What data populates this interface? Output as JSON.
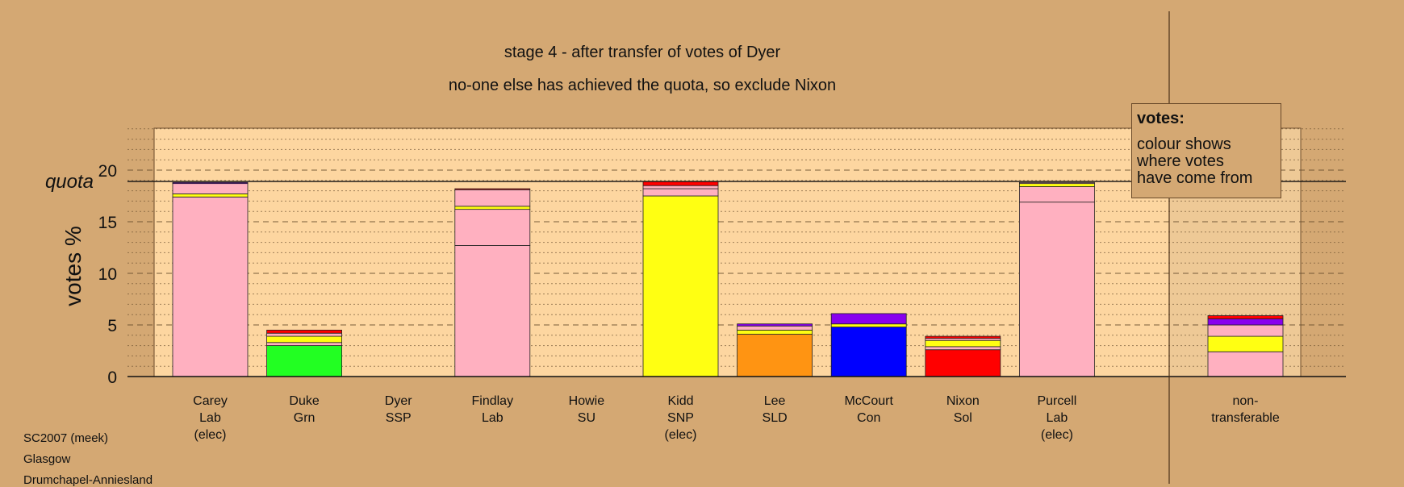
{
  "title": "stage 4 - after transfer of votes of Dyer",
  "subtitle": "no-one else has achieved the quota, so exclude Nixon",
  "legend": {
    "title": "votes:",
    "body": "colour shows\nwhere votes\nhave come from"
  },
  "footer": [
    "SC2007 (meek)",
    "Glasgow",
    "Drumchapel-Anniesland"
  ],
  "colors": {
    "background": "#d4a873",
    "plot_area": "#fdd6a0",
    "Lab": "#ffb0c0",
    "SNP": "#ffff12",
    "SLD": "#ff9412",
    "Con": "#0000ff",
    "Grn": "#22ff22",
    "Sol": "#ff0000",
    "SSP": "#ff3030",
    "SU": "#8800ee"
  },
  "chart_data": {
    "type": "bar",
    "stacked": true,
    "ylabel": "votes %",
    "ylim": [
      0,
      24
    ],
    "yticks": [
      0,
      5,
      10,
      15,
      20
    ],
    "quota": {
      "label": "quota",
      "value": 18.9
    },
    "grid": "dashed at ticks, dotted minor",
    "categories": [
      {
        "lines": [
          "Carey",
          "Lab",
          "(elec)"
        ],
        "segments": [
          {
            "party": "Lab",
            "value": 17.4
          },
          {
            "party": "SNP",
            "value": 0.3
          },
          {
            "party": "Lab",
            "value": 1.0
          },
          {
            "party": "SU",
            "value": 0.1
          }
        ]
      },
      {
        "lines": [
          "Duke",
          "Grn"
        ],
        "segments": [
          {
            "party": "Grn",
            "value": 3.0
          },
          {
            "party": "Lab",
            "value": 0.3
          },
          {
            "party": "SNP",
            "value": 0.6
          },
          {
            "party": "Lab",
            "value": 0.3
          },
          {
            "party": "Sol",
            "value": 0.3
          }
        ]
      },
      {
        "lines": [
          "Dyer",
          "SSP"
        ],
        "segments": []
      },
      {
        "lines": [
          "Findlay",
          "Lab"
        ],
        "segments": [
          {
            "party": "Lab",
            "value": 12.7
          },
          {
            "party": "Lab",
            "value": 3.5
          },
          {
            "party": "SNP",
            "value": 0.3
          },
          {
            "party": "Lab",
            "value": 1.6
          },
          {
            "party": "Sol",
            "value": 0.1
          }
        ]
      },
      {
        "lines": [
          "Howie",
          "SU"
        ],
        "segments": []
      },
      {
        "lines": [
          "Kidd",
          "SNP",
          "(elec)"
        ],
        "segments": [
          {
            "party": "SNP",
            "value": 17.5
          },
          {
            "party": "Lab",
            "value": 0.7
          },
          {
            "party": "Lab",
            "value": 0.3
          },
          {
            "party": "Sol",
            "value": 0.4
          }
        ]
      },
      {
        "lines": [
          "Lee",
          "SLD"
        ],
        "segments": [
          {
            "party": "SLD",
            "value": 4.1
          },
          {
            "party": "SNP",
            "value": 0.4
          },
          {
            "party": "Lab",
            "value": 0.4
          },
          {
            "party": "SU",
            "value": 0.2
          }
        ]
      },
      {
        "lines": [
          "McCourt",
          "Con"
        ],
        "segments": [
          {
            "party": "Con",
            "value": 4.8
          },
          {
            "party": "SNP",
            "value": 0.3
          },
          {
            "party": "SU",
            "value": 1.0
          }
        ]
      },
      {
        "lines": [
          "Nixon",
          "Sol"
        ],
        "segments": [
          {
            "party": "Sol",
            "value": 2.6
          },
          {
            "party": "Lab",
            "value": 0.3
          },
          {
            "party": "SNP",
            "value": 0.6
          },
          {
            "party": "Lab",
            "value": 0.2
          },
          {
            "party": "Sol",
            "value": 0.2
          }
        ]
      },
      {
        "lines": [
          "Purcell",
          "Lab",
          "(elec)"
        ],
        "segments": [
          {
            "party": "Lab",
            "value": 16.9
          },
          {
            "party": "Lab",
            "value": 1.5
          },
          {
            "party": "SNP",
            "value": 0.3
          },
          {
            "party": "Lab",
            "value": 0.1
          }
        ]
      },
      {
        "lines": [
          "non-",
          "transferable"
        ],
        "segments": [
          {
            "party": "Lab",
            "value": 2.4
          },
          {
            "party": "SNP",
            "value": 1.5
          },
          {
            "party": "Lab",
            "value": 1.1
          },
          {
            "party": "SU",
            "value": 0.6
          },
          {
            "party": "Sol",
            "value": 0.3
          }
        ]
      }
    ]
  }
}
